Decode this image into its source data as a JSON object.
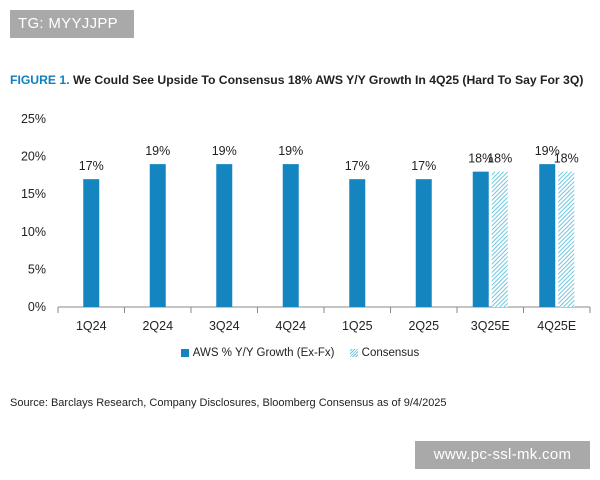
{
  "watermark_top": "TG: MYYJJPP",
  "watermark_bottom": "www.pc-ssl-mk.com",
  "title": {
    "figure_label": "FIGURE 1.",
    "text": " We Could See Upside To Consensus 18% AWS Y/Y Growth In 4Q25 (Hard To Say For 3Q)"
  },
  "source": "Source: Barclays Research, Company Disclosures, Bloomberg Consensus as of 9/4/2025",
  "legend": {
    "aws": "AWS % Y/Y Growth (Ex-Fx)",
    "consensus": "Consensus"
  },
  "colors": {
    "aws": "#1585c0",
    "consensus": "#6fc6de",
    "title_label": "#0e7fbf"
  },
  "chart_data": {
    "type": "bar",
    "categories": [
      "1Q24",
      "2Q24",
      "3Q24",
      "4Q24",
      "1Q25",
      "2Q25",
      "3Q25E",
      "4Q25E"
    ],
    "series": [
      {
        "name": "AWS % Y/Y Growth (Ex-Fx)",
        "values": [
          17,
          19,
          19,
          19,
          17,
          17,
          18,
          19
        ],
        "labels": [
          "17%",
          "19%",
          "19%",
          "19%",
          "17%",
          "17%",
          "18%",
          "19%"
        ]
      },
      {
        "name": "Consensus",
        "values": [
          null,
          null,
          null,
          null,
          null,
          null,
          18,
          18
        ],
        "labels": [
          null,
          null,
          null,
          null,
          null,
          null,
          "18%",
          "18%"
        ]
      }
    ],
    "yticks": [
      "0%",
      "5%",
      "10%",
      "15%",
      "20%",
      "25%"
    ],
    "ylim": [
      0,
      25
    ],
    "xlabel": "",
    "ylabel": ""
  }
}
